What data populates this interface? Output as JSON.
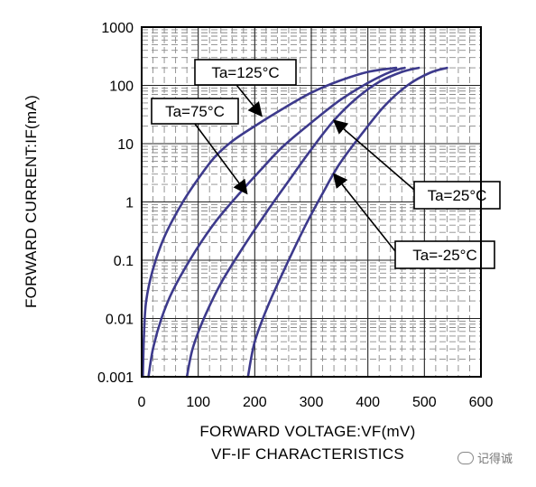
{
  "chart_data": {
    "type": "line",
    "title": "VF-IF CHARACTERISTICS",
    "xlabel": "FORWARD VOLTAGE:VF(mV)",
    "ylabel": "FORWARD CURRENT:IF(mA)",
    "xlim": [
      0,
      600
    ],
    "ylim": [
      0.001,
      1000
    ],
    "yscale": "log",
    "grid": true,
    "xticks": [
      "0",
      "100",
      "200",
      "300",
      "400",
      "500",
      "600"
    ],
    "yticks": [
      "0.001",
      "0.01",
      "0.1",
      "1",
      "10",
      "100",
      "1000"
    ],
    "series": [
      {
        "name": "Ta=125°C",
        "color": "#3d3a8c",
        "points": [
          [
            2,
            0.001
          ],
          [
            4,
            0.005
          ],
          [
            8,
            0.02
          ],
          [
            20,
            0.07
          ],
          [
            40,
            0.25
          ],
          [
            70,
            0.9
          ],
          [
            100,
            2.5
          ],
          [
            130,
            6
          ],
          [
            160,
            11
          ],
          [
            200,
            20
          ],
          [
            250,
            40
          ],
          [
            300,
            75
          ],
          [
            350,
            120
          ],
          [
            400,
            170
          ],
          [
            450,
            200
          ]
        ]
      },
      {
        "name": "Ta=75°C",
        "color": "#3d3a8c",
        "points": [
          [
            12,
            0.001
          ],
          [
            20,
            0.003
          ],
          [
            35,
            0.01
          ],
          [
            55,
            0.03
          ],
          [
            90,
            0.12
          ],
          [
            130,
            0.45
          ],
          [
            170,
            1.3
          ],
          [
            210,
            3.5
          ],
          [
            250,
            9
          ],
          [
            300,
            23
          ],
          [
            350,
            55
          ],
          [
            400,
            110
          ],
          [
            440,
            170
          ],
          [
            465,
            200
          ]
        ]
      },
      {
        "name": "Ta=25°C",
        "color": "#3d3a8c",
        "points": [
          [
            80,
            0.001
          ],
          [
            90,
            0.003
          ],
          [
            110,
            0.01
          ],
          [
            140,
            0.04
          ],
          [
            180,
            0.17
          ],
          [
            220,
            0.65
          ],
          [
            260,
            2.3
          ],
          [
            300,
            8
          ],
          [
            340,
            25
          ],
          [
            380,
            60
          ],
          [
            420,
            115
          ],
          [
            460,
            170
          ],
          [
            490,
            200
          ]
        ]
      },
      {
        "name": "Ta=-25°C",
        "color": "#3d3a8c",
        "points": [
          [
            188,
            0.001
          ],
          [
            200,
            0.004
          ],
          [
            225,
            0.018
          ],
          [
            260,
            0.1
          ],
          [
            290,
            0.4
          ],
          [
            320,
            1.4
          ],
          [
            350,
            4.5
          ],
          [
            390,
            15
          ],
          [
            430,
            45
          ],
          [
            470,
            100
          ],
          [
            510,
            165
          ],
          [
            540,
            200
          ]
        ]
      }
    ],
    "annotations": [
      {
        "label": "Ta=125°C",
        "series": "Ta=125°C"
      },
      {
        "label": "Ta=75°C",
        "series": "Ta=75°C"
      },
      {
        "label": "Ta=25°C",
        "series": "Ta=25°C"
      },
      {
        "label": "Ta=-25°C",
        "series": "Ta=-25°C"
      }
    ]
  },
  "watermark": {
    "text": "记得诚"
  }
}
